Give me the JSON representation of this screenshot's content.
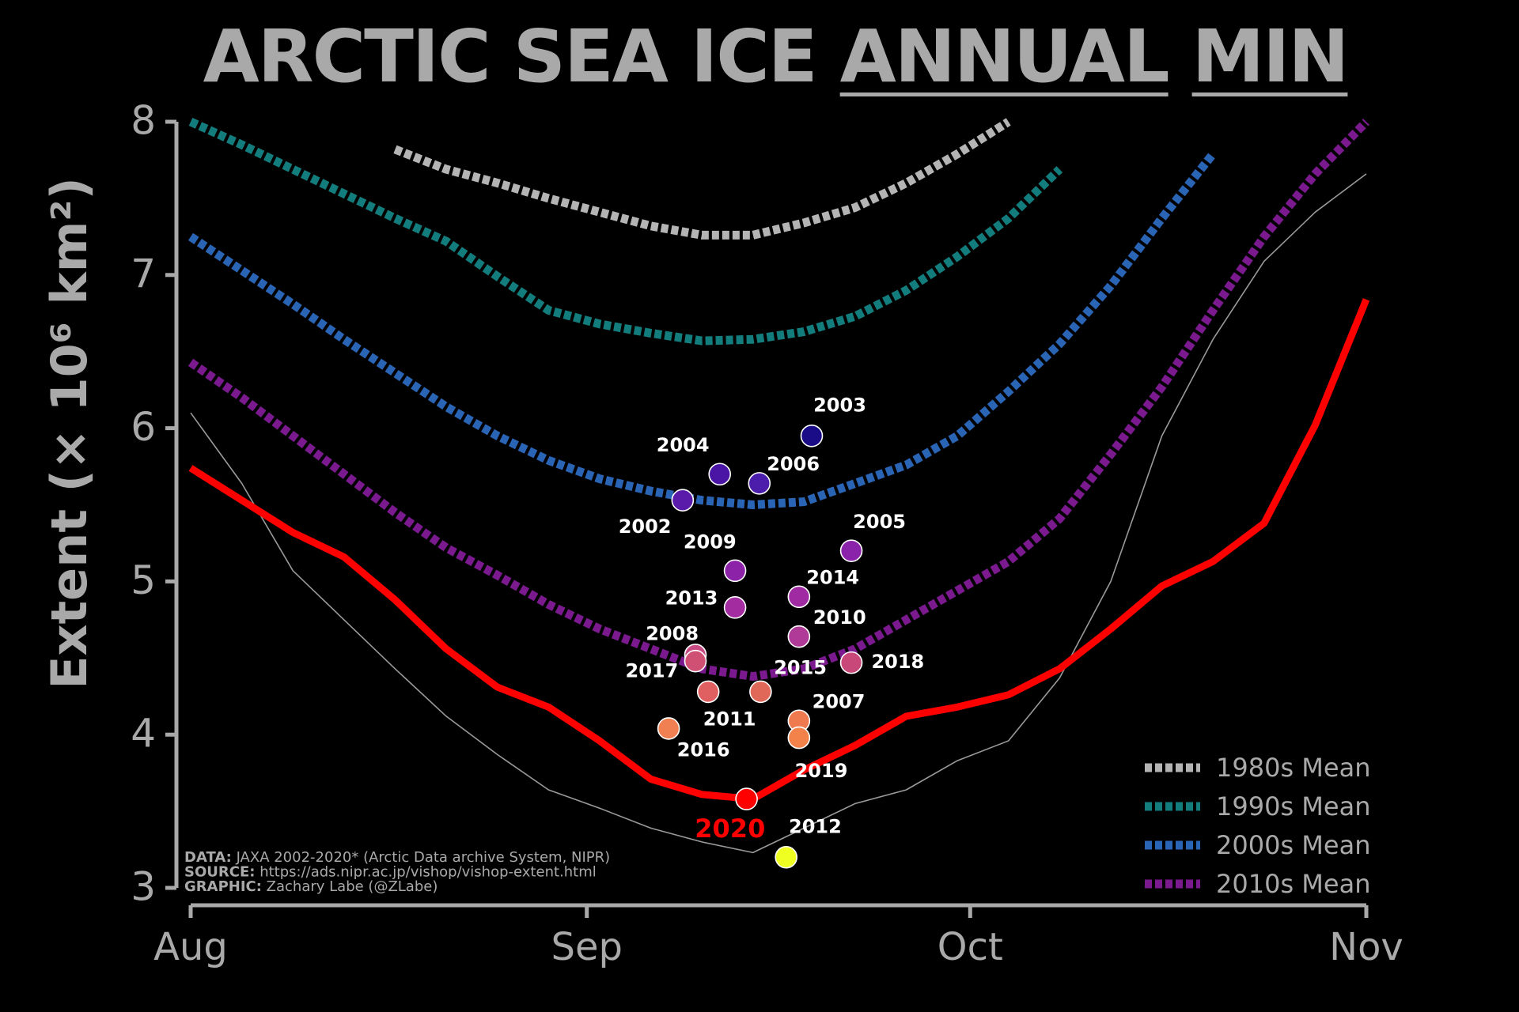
{
  "chart_data": {
    "type": "line",
    "title": [
      {
        "text": "ARCTIC SEA ICE",
        "underline": false
      },
      {
        "text": "ANNUAL",
        "underline": true
      },
      {
        "text": "MIN",
        "underline": true
      }
    ],
    "ylabel": "Extent (× 10⁶ km²)",
    "xlim": [
      0,
      92
    ],
    "xticks": [
      {
        "value": 0,
        "label": "Aug"
      },
      {
        "value": 31,
        "label": "Sep"
      },
      {
        "value": 61,
        "label": "Oct"
      },
      {
        "value": 92,
        "label": "Nov"
      }
    ],
    "ylim": [
      3,
      8
    ],
    "yticks": [
      3,
      4,
      5,
      6,
      7,
      8
    ],
    "legend": "lower right",
    "x": [
      0,
      4,
      8,
      12,
      16,
      20,
      24,
      28,
      32,
      36,
      40,
      44,
      48,
      52,
      56,
      60,
      64,
      68,
      72,
      76,
      80,
      84,
      88,
      92
    ],
    "series": [
      {
        "name": "1980s Mean",
        "color": "#b4b4b4",
        "style": "dashed",
        "values": [
          null,
          null,
          null,
          null,
          7.82,
          7.69,
          7.6,
          7.5,
          7.41,
          7.32,
          7.26,
          7.26,
          7.34,
          7.44,
          7.6,
          7.79,
          8.0,
          null,
          null,
          null,
          null,
          null,
          null,
          null
        ]
      },
      {
        "name": "1990s Mean",
        "color": "#137d7d",
        "style": "dashed",
        "values": [
          8.0,
          7.85,
          7.69,
          7.53,
          7.37,
          7.22,
          6.99,
          6.77,
          6.68,
          6.62,
          6.57,
          6.58,
          6.63,
          6.73,
          6.9,
          7.12,
          7.37,
          7.69,
          null,
          null,
          null,
          null,
          null,
          null
        ]
      },
      {
        "name": "2000s Mean",
        "color": "#2a64b4",
        "style": "dashed",
        "values": [
          7.25,
          7.03,
          6.81,
          6.58,
          6.36,
          6.14,
          5.95,
          5.79,
          5.67,
          5.59,
          5.53,
          5.5,
          5.52,
          5.64,
          5.76,
          5.95,
          6.24,
          6.55,
          6.93,
          7.37,
          7.79,
          null,
          null,
          null
        ]
      },
      {
        "name": "2010s Mean",
        "color": "#7a1a8e",
        "style": "dashed",
        "values": [
          6.43,
          6.2,
          5.95,
          5.7,
          5.45,
          5.22,
          5.04,
          4.85,
          4.69,
          4.56,
          4.43,
          4.38,
          4.43,
          4.56,
          4.75,
          4.94,
          5.13,
          5.41,
          5.83,
          6.27,
          6.77,
          7.25,
          7.66,
          8.0
        ]
      },
      {
        "color": "#9a9a9a",
        "style": "thin",
        "values": [
          6.1,
          5.64,
          5.07,
          4.75,
          4.43,
          4.12,
          3.87,
          3.64,
          3.52,
          3.39,
          3.3,
          3.23,
          3.39,
          3.55,
          3.64,
          3.83,
          3.96,
          4.37,
          5.0,
          5.95,
          6.58,
          7.09,
          7.41,
          7.66
        ]
      },
      {
        "color": "#ff0000",
        "style": "solid",
        "values": [
          5.74,
          5.53,
          5.32,
          5.16,
          4.88,
          4.56,
          4.31,
          4.18,
          3.96,
          3.71,
          3.61,
          3.58,
          3.77,
          3.93,
          4.12,
          4.18,
          4.26,
          4.43,
          4.69,
          4.97,
          5.13,
          5.38,
          6.02,
          6.84
        ]
      }
    ],
    "scatter": {
      "type": "scatter",
      "labels": [
        "2003",
        "2004",
        "2006",
        "2002",
        "2005",
        "2009",
        "2014",
        "2013",
        "2010",
        "2008",
        "2017",
        "2018",
        "2011",
        "2015",
        "2007",
        "2019",
        "2016",
        "2020",
        "2012"
      ],
      "x": [
        48.6,
        41.4,
        44.5,
        38.5,
        51.7,
        42.6,
        47.6,
        42.6,
        47.6,
        39.5,
        39.5,
        51.7,
        40.5,
        44.6,
        47.6,
        47.6,
        37.4,
        43.5,
        46.6
      ],
      "values": [
        5.95,
        5.7,
        5.64,
        5.53,
        5.2,
        5.07,
        4.9,
        4.83,
        4.64,
        4.52,
        4.48,
        4.47,
        4.28,
        4.28,
        4.09,
        3.98,
        4.04,
        3.58,
        3.2
      ],
      "colors": [
        "#1a0c86",
        "#4a14a4",
        "#4c1caa",
        "#5a1aaa",
        "#8a22aa",
        "#8c22a8",
        "#a02aa2",
        "#a22ca0",
        "#b03a98",
        "#c84a82",
        "#d05074",
        "#c8487a",
        "#e06062",
        "#e06858",
        "#f07a50",
        "#f2824a",
        "#f08052",
        "#ff0000",
        "#f0ff22"
      ],
      "label_colors": [
        "#ffffff",
        "#ffffff",
        "#ffffff",
        "#ffffff",
        "#ffffff",
        "#ffffff",
        "#ffffff",
        "#ffffff",
        "#ffffff",
        "#ffffff",
        "#ffffff",
        "#ffffff",
        "#ffffff",
        "#ffffff",
        "#ffffff",
        "#ffffff",
        "#ffffff",
        "#ff0000",
        "#ffffff"
      ]
    },
    "notes": [
      {
        "label": "DATA:",
        "text": "JAXA 2002-2020* (Arctic Data archive System, NIPR)"
      },
      {
        "label": "SOURCE:",
        "text": "https://ads.nipr.ac.jp/vishop/vishop-extent.html"
      },
      {
        "label": "GRAPHIC:",
        "text": "Zachary Labe (@ZLabe)"
      }
    ]
  }
}
